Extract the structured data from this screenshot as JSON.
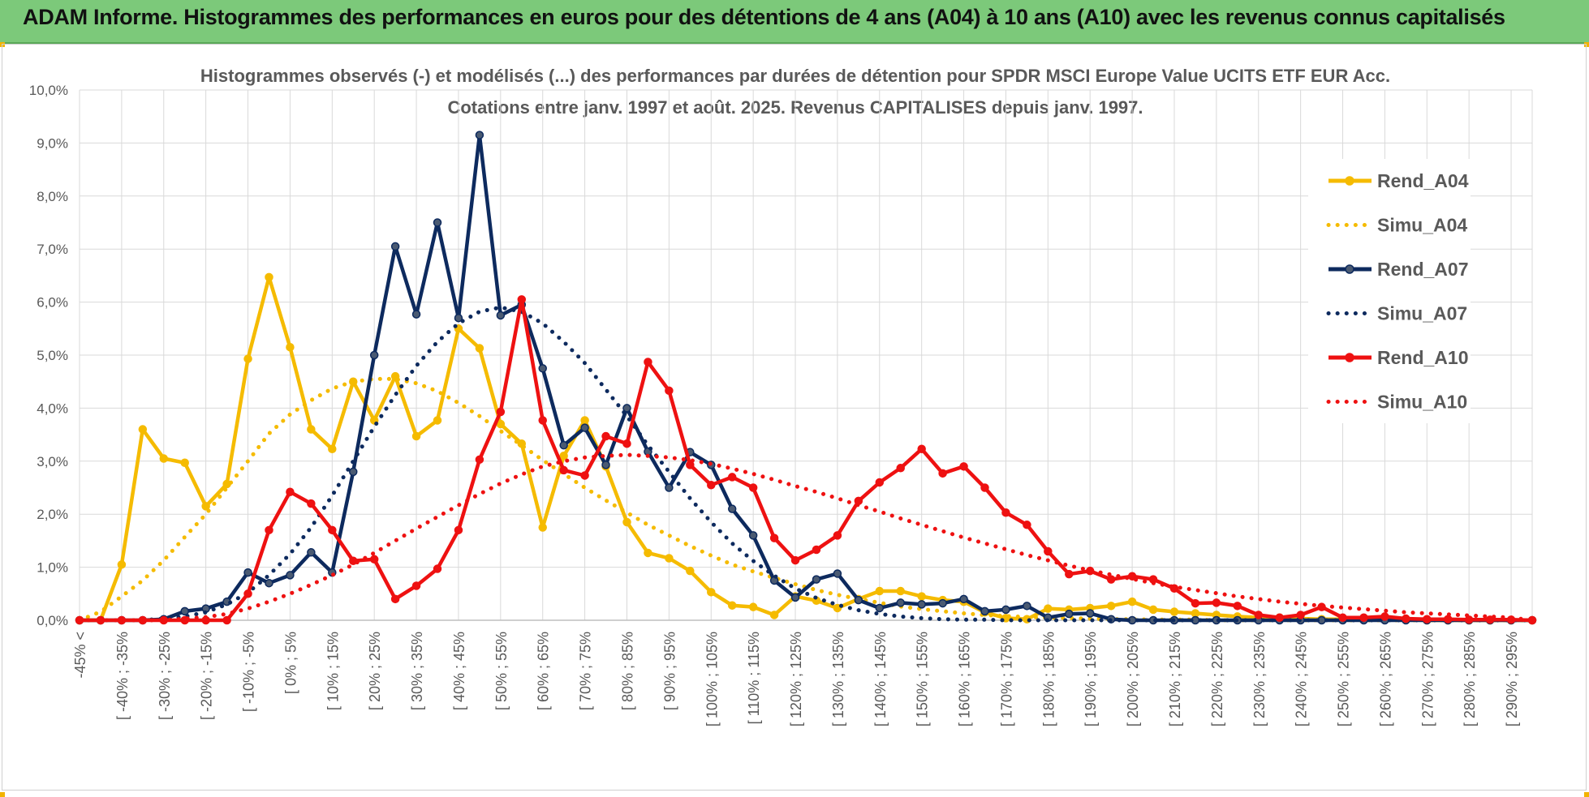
{
  "banner": {
    "title": "ADAM Informe. Histogrammes des performances en euros pour des détentions de 4 ans (A04) à 10 ans (A10) avec les revenus connus capitalisés"
  },
  "colors": {
    "banner_bg": "#7cc97a",
    "corner_accent": "#f2b300",
    "gridline": "#d9d9d9"
  },
  "chart_data": {
    "type": "line",
    "title": "Histogrammes observés (-) et modélisés (...) des performances par durées de détention pour SPDR MSCI Europe Value UCITS ETF EUR Acc.",
    "subtitle": "Cotations entre janv. 1997 et août. 2025. Revenus CAPITALISES depuis janv. 1997.",
    "xlabel": "",
    "ylabel": "",
    "ylim": [
      0,
      10
    ],
    "y_ticks": [
      "0,0%",
      "1,0%",
      "2,0%",
      "3,0%",
      "4,0%",
      "5,0%",
      "6,0%",
      "7,0%",
      "8,0%",
      "9,0%",
      "10,0%"
    ],
    "grid": true,
    "legend_position": "right",
    "categories": [
      "-45% <",
      "[ -40% ; -35%",
      "[ -30% ; -25%",
      "[ -20% ; -15%",
      "[ -10% ; -5%",
      "[ 0% ; 5%",
      "[ 10% ; 15%",
      "[ 20% ; 25%",
      "[ 30% ; 35%",
      "[ 40% ; 45%",
      "[ 50% ; 55%",
      "[ 60% ; 65%",
      "[ 70% ; 75%",
      "[ 80% ; 85%",
      "[ 90% ; 95%",
      "[ 100% ; 105%",
      "[ 110% ; 115%",
      "[ 120% ; 125%",
      "[ 130% ; 135%",
      "[ 140% ; 145%",
      "[ 150% ; 155%",
      "[ 160% ; 165%",
      "[ 170% ; 175%",
      "[ 180% ; 185%",
      "[ 190% ; 195%",
      "[ 200% ; 205%",
      "[ 210% ; 215%",
      "[ 220% ; 225%",
      "[ 230% ; 235%",
      "[ 240% ; 245%",
      "[ 250% ; 255%",
      "[ 260% ; 265%",
      "[ 270% ; 275%",
      "[ 280% ; 285%",
      "[ 290% ; 295%"
    ],
    "x": [
      -45,
      -40,
      -35,
      -30,
      -25,
      -20,
      -15,
      -10,
      -5,
      0,
      5,
      10,
      15,
      20,
      25,
      30,
      35,
      40,
      45,
      50,
      55,
      60,
      65,
      70,
      75,
      80,
      85,
      90,
      95,
      100,
      105,
      110,
      115,
      120,
      125,
      130,
      135,
      140,
      145,
      150,
      155,
      160,
      165,
      170,
      175,
      180,
      185,
      190,
      195,
      200,
      205,
      210,
      215,
      220,
      225,
      230,
      235,
      240,
      245,
      250,
      255,
      260,
      265,
      270,
      275,
      280,
      285,
      290,
      295,
      300
    ],
    "series": [
      {
        "name": "Rend_A04",
        "style": "solid",
        "color": "#f5bb00",
        "values": [
          0,
          0,
          1.05,
          3.6,
          3.05,
          2.97,
          2.15,
          2.57,
          4.93,
          6.47,
          5.15,
          3.6,
          3.23,
          4.5,
          3.77,
          4.6,
          3.47,
          3.77,
          5.5,
          5.13,
          3.7,
          3.33,
          1.75,
          3.1,
          3.77,
          2.9,
          1.85,
          1.27,
          1.17,
          0.93,
          0.53,
          0.28,
          0.25,
          0.1,
          0.45,
          0.37,
          0.23,
          0.4,
          0.55,
          0.55,
          0.45,
          0.38,
          0.35,
          0.15,
          0.04,
          0.02,
          0.22,
          0.2,
          0.23,
          0.27,
          0.35,
          0.2,
          0.16,
          0.13,
          0.1,
          0.07,
          0.05,
          0.05,
          0.03,
          0.02,
          0.02,
          0.01,
          0.01,
          0.01,
          0,
          0,
          0,
          0,
          0,
          0
        ]
      },
      {
        "name": "Simu_A04",
        "style": "dotted",
        "color": "#f5bb00",
        "values": [
          0,
          0.16,
          0.45,
          0.75,
          1.13,
          1.57,
          2.0,
          2.5,
          3.0,
          3.52,
          3.88,
          4.15,
          4.37,
          4.5,
          4.55,
          4.55,
          4.47,
          4.32,
          4.1,
          3.85,
          3.57,
          3.3,
          3.02,
          2.76,
          2.5,
          2.26,
          2.03,
          1.8,
          1.6,
          1.4,
          1.22,
          1.05,
          0.92,
          0.8,
          0.68,
          0.57,
          0.48,
          0.4,
          0.33,
          0.26,
          0.21,
          0.17,
          0.13,
          0.1,
          0.08,
          0.06,
          0.05,
          0.04,
          0.03,
          0.02,
          0.02,
          0.01,
          0.01,
          0.01,
          0,
          0,
          0,
          0,
          0,
          0,
          0,
          0,
          0,
          0,
          0,
          0,
          0,
          0,
          0,
          0
        ]
      },
      {
        "name": "Rend_A07",
        "style": "solid",
        "color": "#0d2a5e",
        "values": [
          0,
          0,
          0,
          0,
          0.02,
          0.17,
          0.22,
          0.35,
          0.9,
          0.7,
          0.85,
          1.28,
          0.9,
          2.8,
          5.0,
          7.05,
          5.77,
          7.5,
          5.7,
          9.15,
          5.75,
          5.95,
          4.75,
          3.3,
          3.63,
          2.93,
          4.0,
          3.18,
          2.5,
          3.17,
          2.93,
          2.1,
          1.6,
          0.75,
          0.43,
          0.77,
          0.88,
          0.38,
          0.23,
          0.33,
          0.3,
          0.32,
          0.4,
          0.17,
          0.2,
          0.27,
          0.05,
          0.12,
          0.13,
          0.02,
          0,
          0,
          0,
          0,
          0,
          0,
          0,
          0,
          0,
          0,
          0,
          0,
          0,
          0,
          0,
          0,
          0,
          0,
          0,
          0
        ]
      },
      {
        "name": "Simu_A07",
        "style": "dotted",
        "color": "#0d2a5e",
        "values": [
          0,
          0,
          0,
          0,
          0.03,
          0.07,
          0.15,
          0.3,
          0.52,
          0.85,
          1.25,
          1.75,
          2.35,
          3.0,
          3.65,
          4.25,
          4.8,
          5.25,
          5.6,
          5.82,
          5.9,
          5.82,
          5.6,
          5.25,
          4.85,
          4.35,
          3.85,
          3.3,
          2.8,
          2.3,
          1.85,
          1.45,
          1.12,
          0.84,
          0.6,
          0.42,
          0.29,
          0.19,
          0.12,
          0.07,
          0.04,
          0.02,
          0.01,
          0.01,
          0,
          0,
          0,
          0,
          0,
          0,
          0,
          0,
          0,
          0,
          0,
          0,
          0,
          0,
          0,
          0,
          0,
          0,
          0,
          0,
          0,
          0,
          0,
          0,
          0,
          0
        ]
      },
      {
        "name": "Rend_A10",
        "style": "solid",
        "color": "#ee1111",
        "values": [
          0,
          0,
          0,
          0,
          0,
          0,
          0,
          0,
          0.5,
          1.7,
          2.42,
          2.2,
          1.7,
          1.12,
          1.15,
          0.4,
          0.65,
          0.97,
          1.7,
          3.03,
          3.93,
          6.05,
          3.77,
          2.83,
          2.73,
          3.47,
          3.33,
          4.87,
          4.33,
          2.93,
          2.55,
          2.7,
          2.5,
          1.55,
          1.13,
          1.33,
          1.6,
          2.25,
          2.6,
          2.87,
          3.23,
          2.77,
          2.9,
          2.5,
          2.03,
          1.8,
          1.3,
          0.87,
          0.93,
          0.77,
          0.83,
          0.77,
          0.6,
          0.32,
          0.33,
          0.27,
          0.1,
          0.05,
          0.1,
          0.25,
          0.05,
          0.05,
          0.07,
          0.03,
          0.02,
          0.02,
          0.01,
          0.01,
          0.01,
          0
        ]
      },
      {
        "name": "Simu_A10",
        "style": "dotted",
        "color": "#ee1111",
        "values": [
          0,
          0,
          0,
          0,
          0,
          0.03,
          0.06,
          0.12,
          0.22,
          0.35,
          0.5,
          0.67,
          0.85,
          1.05,
          1.27,
          1.5,
          1.73,
          1.95,
          2.17,
          2.38,
          2.58,
          2.75,
          2.9,
          3.0,
          3.07,
          3.1,
          3.12,
          3.1,
          3.07,
          3.02,
          2.95,
          2.86,
          2.76,
          2.65,
          2.53,
          2.42,
          2.3,
          2.17,
          2.05,
          1.92,
          1.8,
          1.68,
          1.56,
          1.45,
          1.34,
          1.23,
          1.13,
          1.03,
          0.94,
          0.86,
          0.78,
          0.7,
          0.63,
          0.57,
          0.51,
          0.45,
          0.4,
          0.35,
          0.31,
          0.27,
          0.24,
          0.21,
          0.18,
          0.15,
          0.13,
          0.11,
          0.09,
          0.07,
          0.05,
          0
        ]
      }
    ]
  }
}
